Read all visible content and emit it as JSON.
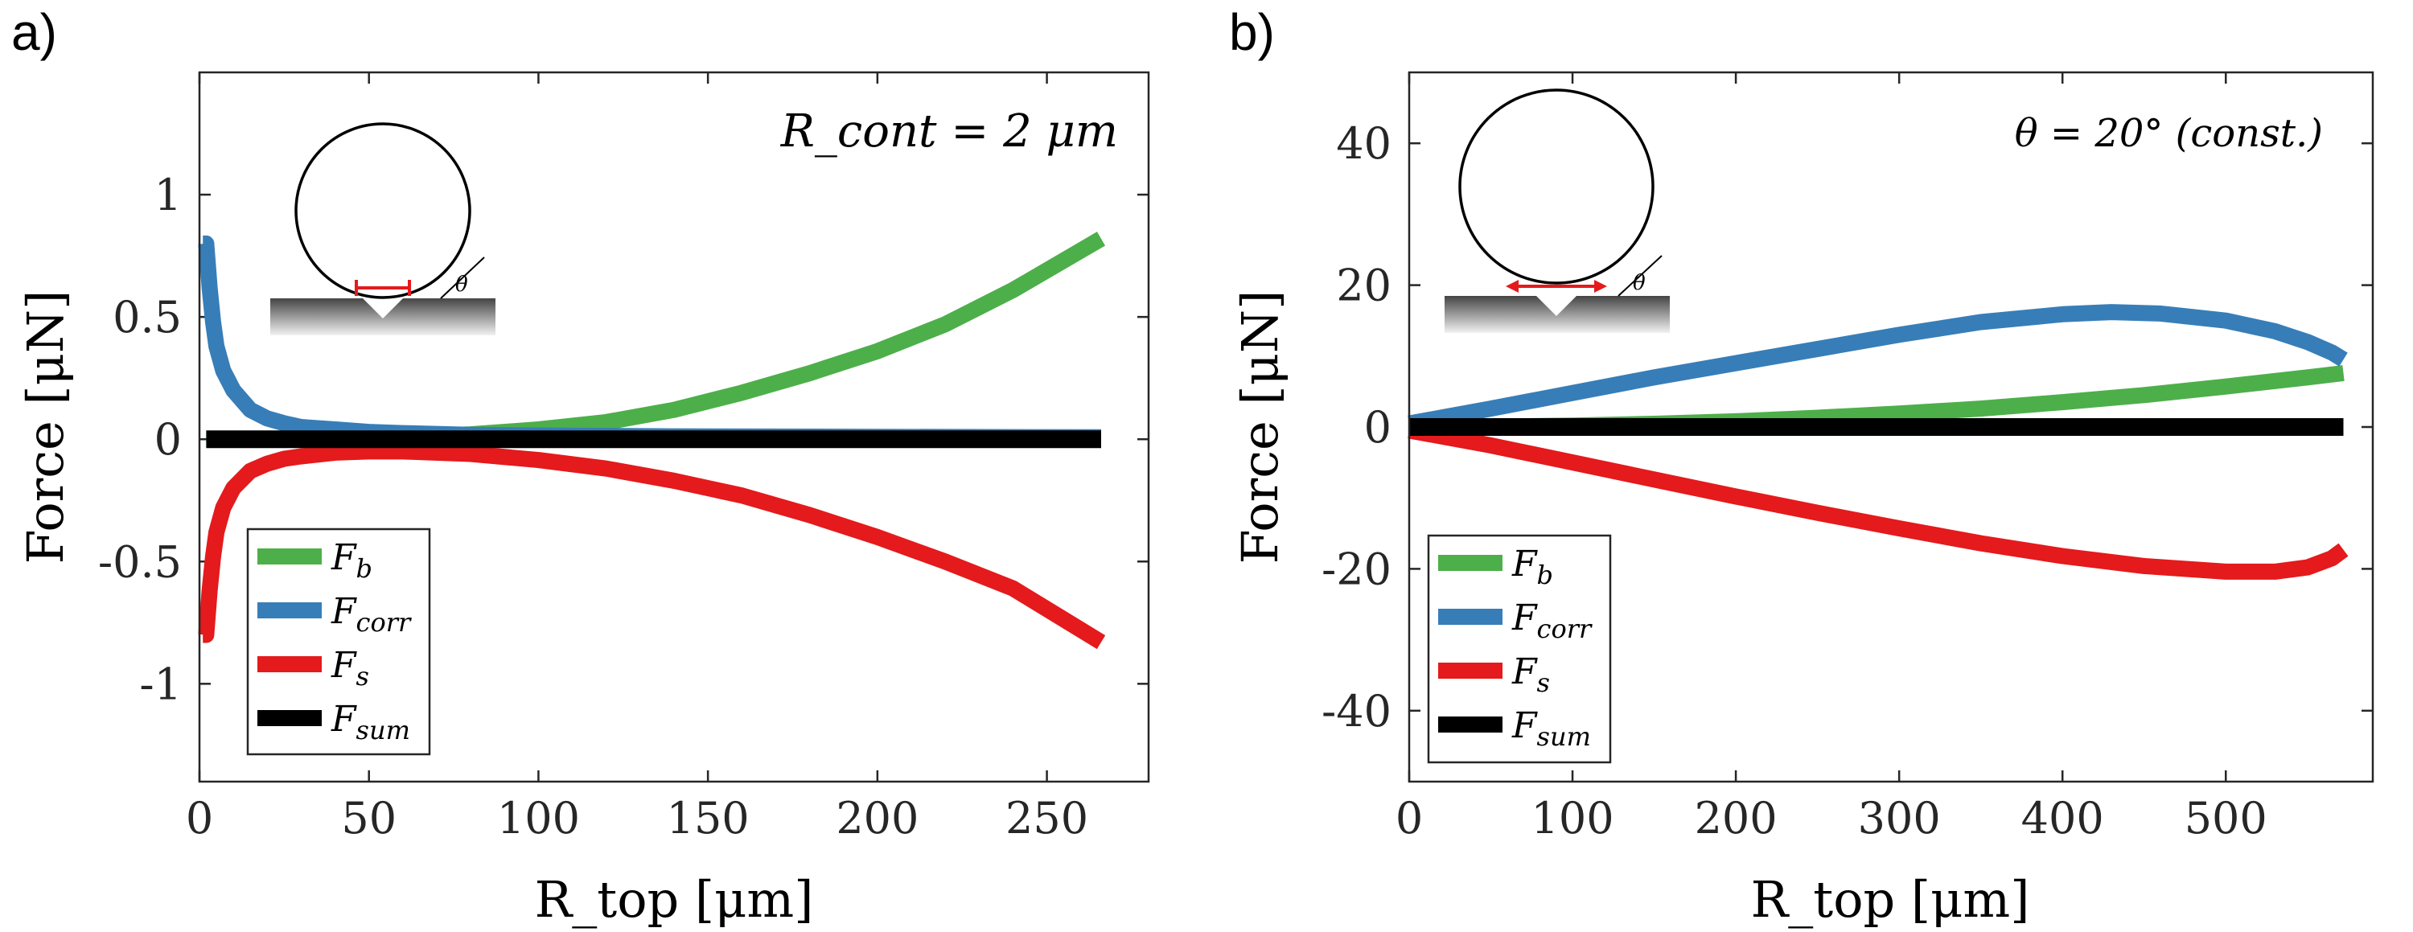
{
  "panel_labels": [
    "a)",
    "b)"
  ],
  "colors": {
    "fb": "#4daf4a",
    "fcorr": "#377eb8",
    "fs": "#e41a1c",
    "fsum": "#000000",
    "axis": "#262626",
    "theta_line": "#e41a1c"
  },
  "chart_data": [
    {
      "type": "line",
      "panel": "a)",
      "xlabel": "R_top [μm]",
      "ylabel": "Force [μN]",
      "xlim": [
        0,
        280
      ],
      "ylim": [
        -1.4,
        1.5
      ],
      "xticks": [
        0,
        50,
        100,
        150,
        200,
        250
      ],
      "xtick_labels": [
        "0",
        "50",
        "100",
        "150",
        "200",
        "250"
      ],
      "yticks": [
        1,
        0.5,
        0,
        -0.5,
        -1
      ],
      "ytick_labels": [
        "1",
        "0.5",
        "0",
        "-0.5",
        "-1"
      ],
      "annotation": "R_cont = 2 μm",
      "legend": [
        "F_b",
        "F_corr",
        "F_s",
        "F_sum"
      ],
      "legend_position": "bottom-left",
      "inset": "droplet-contact-angle",
      "series": [
        {
          "name": "F_b",
          "x": [
            2,
            20,
            40,
            60,
            80,
            100,
            120,
            140,
            160,
            180,
            200,
            220,
            240,
            266
          ],
          "y": [
            0.0,
            0.0,
            0.0,
            0.01,
            0.02,
            0.04,
            0.07,
            0.12,
            0.19,
            0.27,
            0.36,
            0.47,
            0.61,
            0.82
          ]
        },
        {
          "name": "F_corr",
          "x": [
            1,
            2,
            3,
            4,
            5,
            7,
            10,
            15,
            20,
            25,
            30,
            40,
            50,
            60,
            80,
            100,
            140,
            200,
            266
          ],
          "y": [
            0.8,
            0.8,
            0.62,
            0.48,
            0.38,
            0.28,
            0.2,
            0.12,
            0.085,
            0.065,
            0.05,
            0.04,
            0.03,
            0.025,
            0.018,
            0.015,
            0.012,
            0.01,
            0.008
          ]
        },
        {
          "name": "F_s",
          "x": [
            1,
            2,
            3,
            4,
            5,
            7,
            10,
            15,
            20,
            25,
            30,
            40,
            50,
            60,
            80,
            100,
            120,
            140,
            160,
            180,
            200,
            220,
            240,
            266
          ],
          "y": [
            -0.8,
            -0.8,
            -0.62,
            -0.48,
            -0.38,
            -0.28,
            -0.2,
            -0.13,
            -0.1,
            -0.08,
            -0.07,
            -0.055,
            -0.05,
            -0.05,
            -0.06,
            -0.085,
            -0.12,
            -0.17,
            -0.23,
            -0.31,
            -0.4,
            -0.5,
            -0.61,
            -0.83
          ]
        },
        {
          "name": "F_sum",
          "x": [
            2,
            266
          ],
          "y": [
            0,
            0
          ]
        }
      ]
    },
    {
      "type": "line",
      "panel": "b)",
      "xlabel": "R_top [μm]",
      "ylabel": "Force [μN]",
      "xlim": [
        0,
        590
      ],
      "ylim": [
        -50,
        50
      ],
      "xticks": [
        0,
        100,
        200,
        300,
        400,
        500
      ],
      "xtick_labels": [
        "0",
        "100",
        "200",
        "300",
        "400",
        "500"
      ],
      "yticks": [
        40,
        20,
        0,
        -20,
        -40
      ],
      "ytick_labels": [
        "40",
        "20",
        "0",
        "-20",
        "-40"
      ],
      "annotation": "θ = 20° (const.)",
      "legend": [
        "F_b",
        "F_corr",
        "F_s",
        "F_sum"
      ],
      "legend_position": "bottom-left",
      "inset": "droplet-contact-angle",
      "series": [
        {
          "name": "F_b",
          "x": [
            0,
            50,
            100,
            150,
            200,
            250,
            300,
            350,
            400,
            450,
            500,
            550,
            572
          ],
          "y": [
            0,
            0.05,
            0.2,
            0.45,
            0.8,
            1.3,
            1.9,
            2.6,
            3.5,
            4.5,
            5.7,
            7.0,
            7.6
          ]
        },
        {
          "name": "F_corr",
          "x": [
            0,
            50,
            100,
            150,
            200,
            250,
            300,
            350,
            400,
            430,
            460,
            500,
            530,
            550,
            565,
            572
          ],
          "y": [
            0.5,
            2.6,
            4.8,
            7.0,
            9.0,
            11.0,
            13.0,
            14.8,
            15.9,
            16.2,
            16.0,
            15.0,
            13.5,
            12.0,
            10.5,
            9.5
          ]
        },
        {
          "name": "F_s",
          "x": [
            0,
            50,
            100,
            150,
            200,
            250,
            300,
            350,
            400,
            450,
            500,
            530,
            550,
            565,
            572
          ],
          "y": [
            -0.5,
            -2.6,
            -5.0,
            -7.4,
            -9.8,
            -12.1,
            -14.3,
            -16.4,
            -18.2,
            -19.6,
            -20.4,
            -20.4,
            -19.8,
            -18.5,
            -17.3
          ]
        },
        {
          "name": "F_sum",
          "x": [
            0,
            572
          ],
          "y": [
            0,
            0
          ]
        }
      ]
    }
  ]
}
